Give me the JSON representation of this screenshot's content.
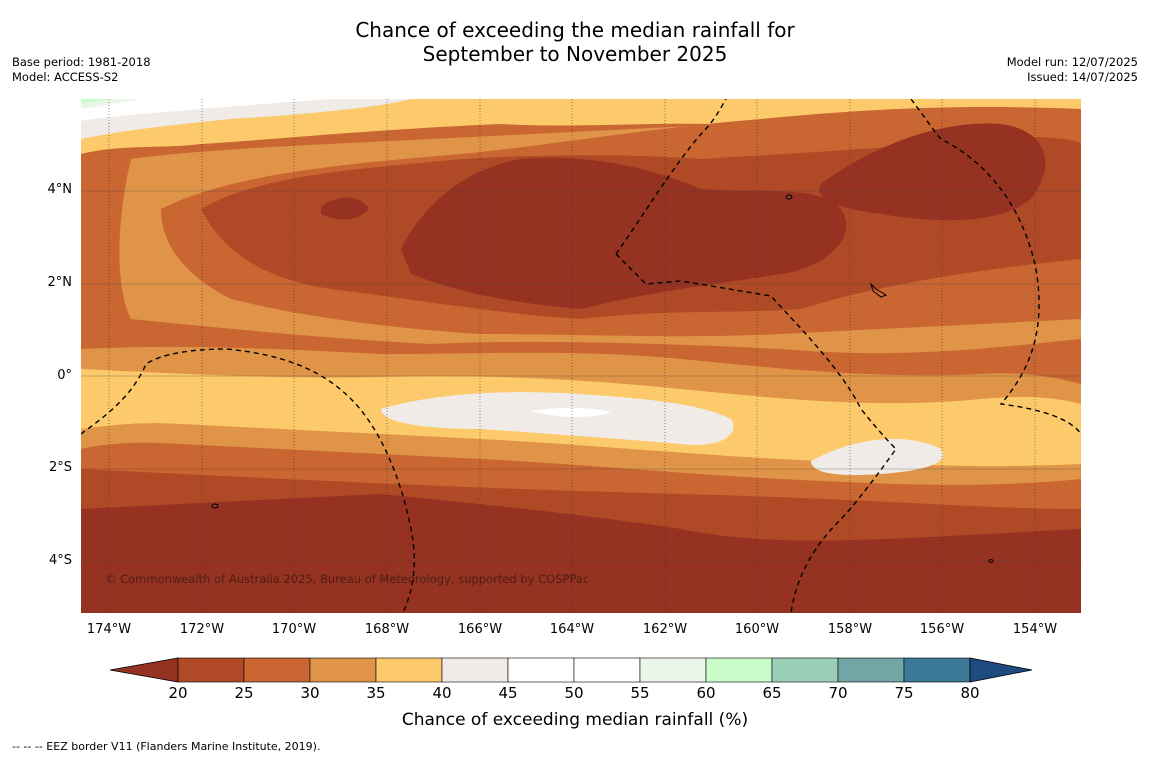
{
  "title_line1": "Chance of exceeding the median rainfall for",
  "title_line2": "September to November 2025",
  "left_meta": {
    "base_period": "Base period: 1981-2018",
    "model": "Model: ACCESS-S2"
  },
  "right_meta": {
    "model_run": "Model run: 12/07/2025",
    "issued": "Issued: 14/07/2025"
  },
  "copyright": "© Commonwealth of Australia 2025, Bureau of Meteorology, supported by COSPPac",
  "lon_ticks": [
    "174°W",
    "172°W",
    "170°W",
    "168°W",
    "166°W",
    "164°W",
    "162°W",
    "160°W",
    "158°W",
    "156°W",
    "154°W"
  ],
  "lat_ticks": [
    "4°N",
    "2°N",
    "0°",
    "2°S",
    "4°S"
  ],
  "colorbar": {
    "label": "Chance of exceeding median rainfall (%)",
    "ticks": [
      "20",
      "25",
      "30",
      "35",
      "40",
      "45",
      "50",
      "55",
      "60",
      "65",
      "70",
      "75",
      "80"
    ],
    "colors": [
      "#963222",
      "#b04a26",
      "#c96632",
      "#e09448",
      "#fcca6a",
      "#f0ebe6",
      "#ffffff",
      "#ffffff",
      "#eaf6ea",
      "#c8fcc8",
      "#9ccfb8",
      "#72a6a6",
      "#3c7898",
      "#1e4a80"
    ]
  },
  "footnote": "-- -- -- EEZ border V11 (Flanders Marine Institute, 2019)."
}
